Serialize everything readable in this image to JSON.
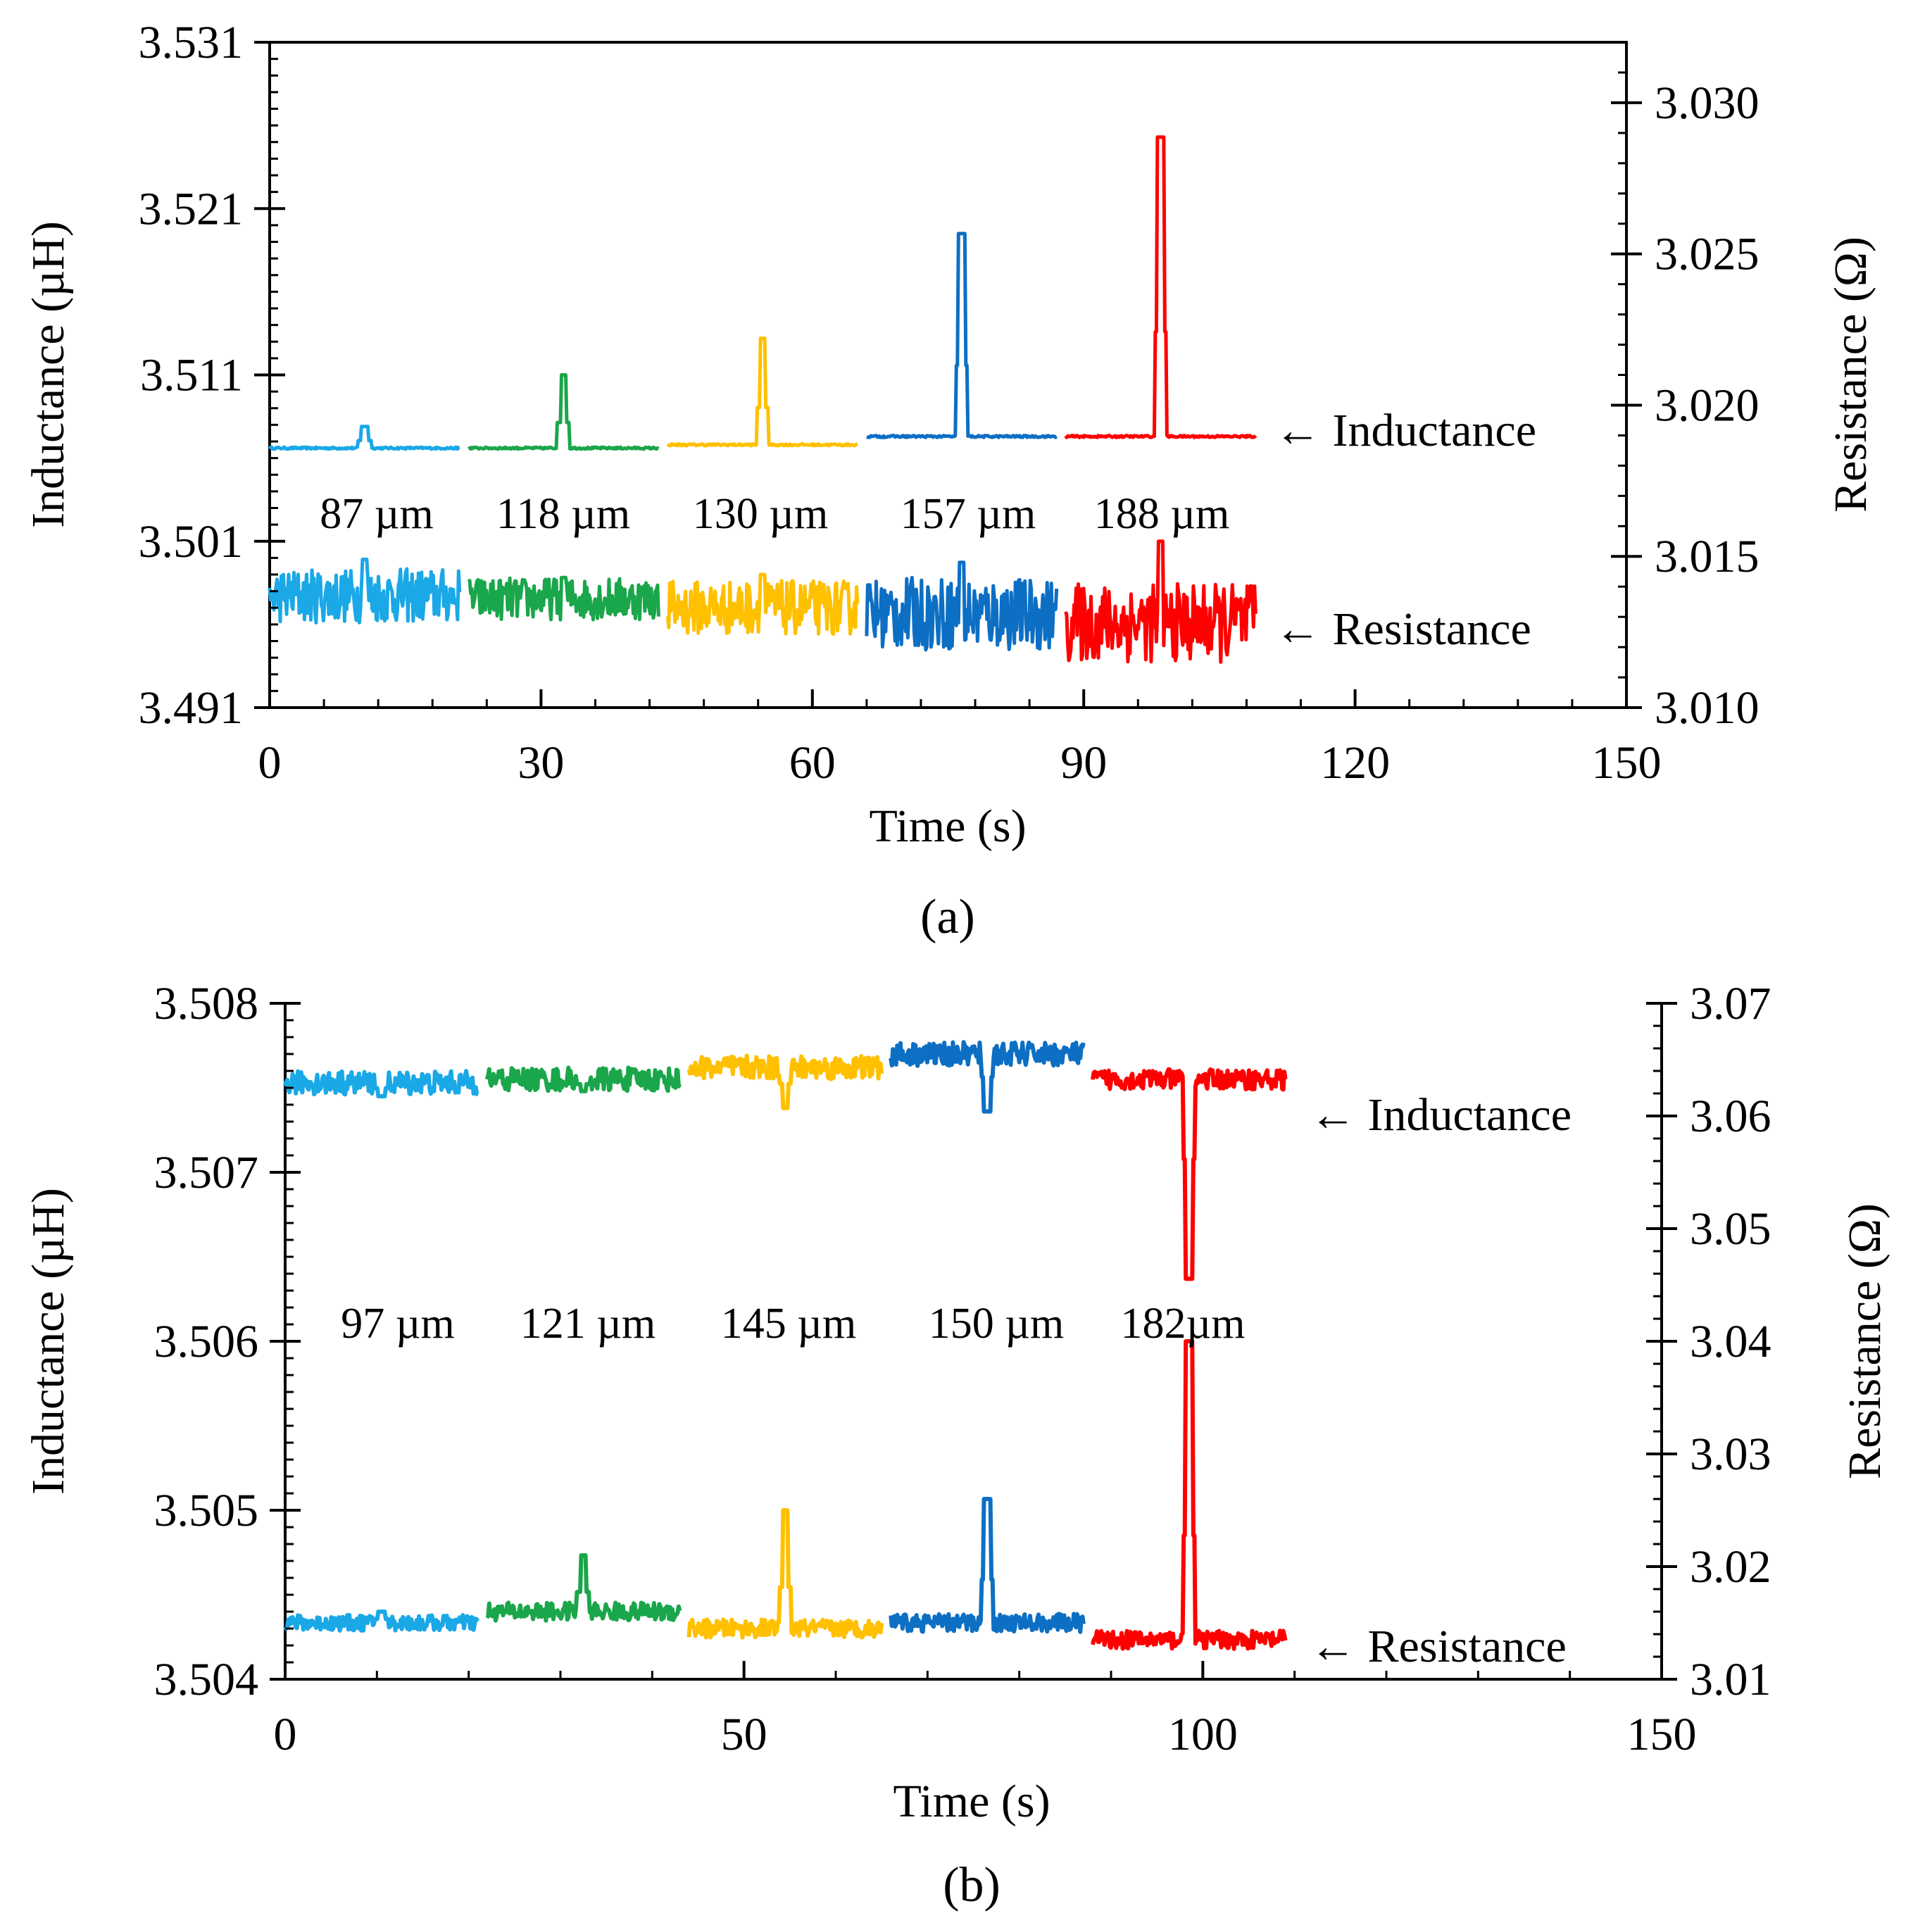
{
  "chart_data": [
    {
      "panel": "(a)",
      "type": "line",
      "xlabel": "Time (s)",
      "ylabel": "Inductance (µH)",
      "y2label": "Resistance (Ω)",
      "xlim": [
        0,
        150
      ],
      "xticks": [
        0,
        30,
        60,
        90,
        120,
        150
      ],
      "ylim": [
        3.491,
        3.531
      ],
      "yticks": [
        "3.491",
        "3.501",
        "3.511",
        "3.521",
        "3.531"
      ],
      "y2lim": [
        3.01,
        3.032
      ],
      "y2ticks": [
        "3.010",
        "3.015",
        "3.020",
        "3.025",
        "3.030"
      ],
      "annotations": [
        {
          "text": "← Inductance",
          "x": 111,
          "y": 3.5074
        },
        {
          "text": "← Resistance",
          "x": 111,
          "y": 3.4953
        }
      ],
      "series": [
        {
          "name": "87 µm",
          "color": "#1aa8e6",
          "t": [
            0,
            21
          ],
          "ind_base": 3.5066,
          "ind_peak": 3.5079,
          "res_base": 3.0137,
          "res_noise": 0.0009,
          "res_peak": 3.0149
        },
        {
          "name": "118 µm",
          "color": "#1aa64a",
          "t": [
            22,
            43
          ],
          "ind_base": 3.5066,
          "ind_peak": 3.511,
          "res_base": 3.0136,
          "res_noise": 0.0007,
          "res_peak": 3.0143
        },
        {
          "name": "130 µm",
          "color": "#ffc000",
          "t": [
            44,
            65
          ],
          "ind_base": 3.5068,
          "ind_peak": 3.5132,
          "res_base": 3.0133,
          "res_noise": 0.0009,
          "res_peak": 3.0144
        },
        {
          "name": "157 µm",
          "color": "#0d6fc4",
          "t": [
            66,
            87
          ],
          "ind_base": 3.5073,
          "ind_peak": 3.5195,
          "res_base": 3.0131,
          "res_noise": 0.0012,
          "res_peak": 3.0148
        },
        {
          "name": "188 µm",
          "color": "#ff0000",
          "t": [
            88,
            109
          ],
          "ind_base": 3.5073,
          "ind_peak": 3.5253,
          "res_base": 3.0128,
          "res_noise": 0.0013,
          "res_peak": 3.0155
        }
      ],
      "labels": [
        "87 µm",
        "118 µm",
        "130 µm",
        "157 µm",
        "188 µm"
      ],
      "caption": "(a)"
    },
    {
      "panel": "(b)",
      "type": "line",
      "xlabel": "Time (s)",
      "ylabel": "Inductance (µH)",
      "y2label": "Resistance (Ω)",
      "xlim": [
        0,
        150
      ],
      "xticks": [
        0,
        50,
        100,
        150
      ],
      "ylim": [
        3.504,
        3.508
      ],
      "yticks": [
        "3.504",
        "3.505",
        "3.506",
        "3.507",
        "3.508"
      ],
      "y2lim": [
        3.01,
        3.07
      ],
      "y2ticks": [
        "3.01",
        "3.02",
        "3.03",
        "3.04",
        "3.05",
        "3.06",
        "3.07"
      ],
      "annotations": [
        {
          "text": "← Inductance",
          "x": 113,
          "y": 3.50736
        },
        {
          "text": "← Resistance",
          "x": 113,
          "y": 3.50422
        }
      ],
      "series": [
        {
          "name": "97 µm",
          "color": "#1aa8e6",
          "t": [
            0,
            21
          ],
          "ind_base": 3.50753,
          "ind_noise": 7e-05,
          "ind_dip": 3.50745,
          "res_base": 3.015,
          "res_noise": 0.0007,
          "res_peak": 3.016
        },
        {
          "name": "121 µm",
          "color": "#1aa64a",
          "t": [
            22,
            43
          ],
          "ind_base": 3.50755,
          "ind_noise": 7e-05,
          "ind_dip": 3.50748,
          "res_base": 3.016,
          "res_noise": 0.0008,
          "res_peak": 3.021
        },
        {
          "name": "145 µm",
          "color": "#ffc000",
          "t": [
            44,
            65
          ],
          "ind_base": 3.50762,
          "ind_noise": 7e-05,
          "ind_dip": 3.50738,
          "res_base": 3.0145,
          "res_noise": 0.0008,
          "res_peak": 3.025
        },
        {
          "name": "150 µm",
          "color": "#0d6fc4",
          "t": [
            66,
            87
          ],
          "ind_base": 3.5077,
          "ind_noise": 7e-05,
          "ind_dip": 3.50736,
          "res_base": 3.015,
          "res_noise": 0.0008,
          "res_peak": 3.026
        },
        {
          "name": "182µm",
          "color": "#ff0000",
          "t": [
            88,
            109
          ],
          "ind_base": 3.50755,
          "ind_noise": 6e-05,
          "ind_dip": 3.50637,
          "res_base": 3.0135,
          "res_noise": 0.0008,
          "res_peak": 3.04
        }
      ],
      "labels": [
        "97 µm",
        "121 µm",
        "145 µm",
        "150 µm",
        "182µm"
      ],
      "caption": "(b)"
    }
  ]
}
